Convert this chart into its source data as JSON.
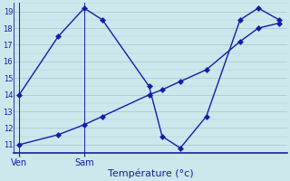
{
  "xlabel": "Température (°c)",
  "background_color": "#cce8ec",
  "grid_color": "#aaccd4",
  "line_color": "#1a1aaa",
  "spine_color": "#3333bb",
  "ylim": [
    10.5,
    19.5
  ],
  "yticks": [
    11,
    12,
    13,
    14,
    15,
    16,
    17,
    18,
    19
  ],
  "xlim": [
    -0.2,
    10.3
  ],
  "series1_x": [
    0,
    1.5,
    2.5,
    3.2,
    5.0,
    5.5,
    6.2,
    7.2,
    8.5,
    9.2,
    10.0
  ],
  "series1_y": [
    14.0,
    17.5,
    19.2,
    18.5,
    14.5,
    11.5,
    10.8,
    12.7,
    18.5,
    19.2,
    18.5
  ],
  "series2_x": [
    0,
    1.5,
    2.5,
    3.2,
    5.0,
    5.5,
    6.2,
    7.2,
    8.5,
    9.2,
    10.0
  ],
  "series2_y": [
    11.0,
    11.6,
    12.2,
    12.7,
    14.0,
    14.3,
    14.8,
    15.5,
    17.2,
    18.0,
    18.3
  ],
  "xtick_positions": [
    0.0,
    2.5
  ],
  "xtick_labels": [
    "Ven",
    "Sam"
  ],
  "vline_positions": [
    0.0,
    2.5
  ],
  "ylabel_fontsize": 7,
  "xlabel_fontsize": 8,
  "ytick_fontsize": 6,
  "xtick_fontsize": 7
}
